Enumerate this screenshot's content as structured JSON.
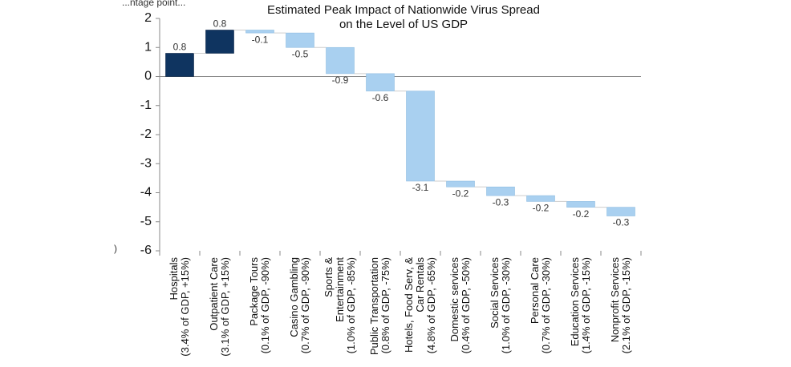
{
  "chart_data": {
    "type": "bar",
    "subtype": "waterfall",
    "title_lines": [
      "Estimated Peak Impact of Nationwide Virus Spread",
      "on the Level of US GDP"
    ],
    "top_left_fragment": "...ntage point...",
    "left_edge_fragment": ")",
    "ylim": [
      -6,
      2
    ],
    "yticks": [
      2,
      1,
      0,
      -1,
      -2,
      -3,
      -4,
      -5,
      -6
    ],
    "categories": [
      [
        "Hospitals",
        "(3.4% of GDP, +15%)"
      ],
      [
        "Outpatient Care",
        "(3.1% of GDP, +15%)"
      ],
      [
        "Package Tours",
        "(0.1% of GDP, -90%)"
      ],
      [
        "Casino Gambling",
        "(0.7% of GDP, -90%)"
      ],
      [
        "Sports &",
        "Entertainment",
        "(1.0% of GDP, -85%)"
      ],
      [
        "Public Transportation",
        "(0.8% of GDP, -75%)"
      ],
      [
        "Hotels, Food Serv, &",
        "Car Rentals",
        "(4.8% of GDP, -65%)"
      ],
      [
        "Domestic services",
        "(0.4% of GDP, -50%)"
      ],
      [
        "Social Services",
        "(1.0% of GDP, -30%)"
      ],
      [
        "Personal Care",
        "(0.7% of GDP, -30%)"
      ],
      [
        "Education Services",
        "(1.4% of GDP, -15%)"
      ],
      [
        "Nonprofit Services",
        "(2.1% of GDP, -15%)"
      ]
    ],
    "values": [
      0.8,
      0.8,
      -0.1,
      -0.5,
      -0.9,
      -0.6,
      -3.1,
      -0.2,
      -0.3,
      -0.2,
      -0.2,
      -0.3
    ],
    "value_labels": [
      "0.8",
      "0.8",
      "-0.1",
      "-0.5",
      "-0.9",
      "-0.6",
      "-3.1",
      "-0.2",
      "-0.3",
      "-0.2",
      "-0.2",
      "-0.3"
    ],
    "colors": {
      "positive": "#0f3460",
      "negative": "#a9d0f0",
      "axis": "#888888"
    }
  }
}
